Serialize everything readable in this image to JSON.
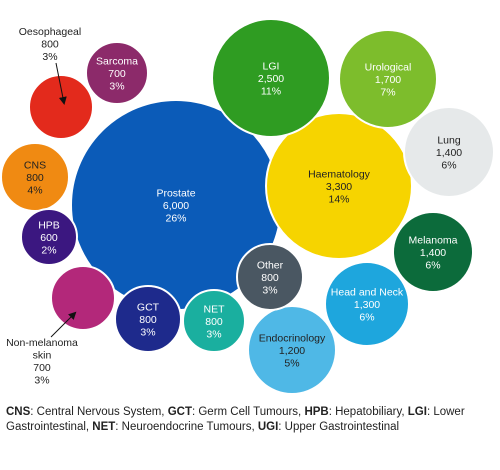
{
  "chart_data": {
    "type": "bubble",
    "bubbles": [
      {
        "label": [
          "Prostate"
        ],
        "value_text": "6,000",
        "pct_text": "26%",
        "value": 6000,
        "pct": 26,
        "color": "#0b5bb8",
        "text_color": "#ffffff"
      },
      {
        "label": [
          "Haematology"
        ],
        "value_text": "3,300",
        "pct_text": "14%",
        "value": 3300,
        "pct": 14,
        "color": "#f6d400",
        "text_color": "#222222"
      },
      {
        "label": [
          "LGI"
        ],
        "value_text": "2,500",
        "pct_text": "11%",
        "value": 2500,
        "pct": 11,
        "color": "#2f9c22",
        "text_color": "#ffffff"
      },
      {
        "label": [
          "Urological"
        ],
        "value_text": "1,700",
        "pct_text": "7%",
        "value": 1700,
        "pct": 7,
        "color": "#7dbd2c",
        "text_color": "#ffffff"
      },
      {
        "label": [
          "Lung"
        ],
        "value_text": "1,400",
        "pct_text": "6%",
        "value": 1400,
        "pct": 6,
        "color": "#e6e9ea",
        "text_color": "#222222"
      },
      {
        "label": [
          "Melanoma"
        ],
        "value_text": "1,400",
        "pct_text": "6%",
        "value": 1400,
        "pct": 6,
        "color": "#0c6b3b",
        "text_color": "#ffffff"
      },
      {
        "label": [
          "Head and Neck"
        ],
        "value_text": "1,300",
        "pct_text": "6%",
        "value": 1300,
        "pct": 6,
        "color": "#1ea6dd",
        "text_color": "#ffffff"
      },
      {
        "label": [
          "Endocrinology"
        ],
        "value_text": "1,200",
        "pct_text": "5%",
        "value": 1200,
        "pct": 5,
        "color": "#4fb8e6",
        "text_color": "#222222"
      },
      {
        "label": [
          "NET"
        ],
        "value_text": "800",
        "pct_text": "3%",
        "value": 800,
        "pct": 3,
        "color": "#1aaf9f",
        "text_color": "#ffffff"
      },
      {
        "label": [
          "Other"
        ],
        "value_text": "800",
        "pct_text": "3%",
        "value": 800,
        "pct": 3,
        "color": "#4a5762",
        "text_color": "#ffffff"
      },
      {
        "label": [
          "GCT"
        ],
        "value_text": "800",
        "pct_text": "3%",
        "value": 800,
        "pct": 3,
        "color": "#1e2a8c",
        "text_color": "#ffffff"
      },
      {
        "label": [
          "CNS"
        ],
        "value_text": "800",
        "pct_text": "4%",
        "value": 800,
        "pct": 4,
        "color": "#f08a12",
        "text_color": "#222222"
      },
      {
        "label": [
          "Sarcoma"
        ],
        "value_text": "700",
        "pct_text": "3%",
        "value": 700,
        "pct": 3,
        "color": "#8c2a6a",
        "text_color": "#ffffff"
      },
      {
        "label": [
          "HPB"
        ],
        "value_text": "600",
        "pct_text": "2%",
        "value": 600,
        "pct": 2,
        "color": "#3b1780",
        "text_color": "#ffffff"
      },
      {
        "label": [
          "Oesophageal"
        ],
        "value_text": "800",
        "pct_text": "3%",
        "value": 800,
        "pct": 3,
        "color": "#e32a1c",
        "text_color": "#222222",
        "external": true
      },
      {
        "label": [
          "Non-melanoma",
          "skin"
        ],
        "value_text": "700",
        "pct_text": "3%",
        "value": 700,
        "pct": 3,
        "color": "#b3287a",
        "text_color": "#222222",
        "external": true
      }
    ]
  },
  "footnote": [
    {
      "abbr": "CNS",
      "text": ": Central Nervous System, "
    },
    {
      "abbr": "GCT",
      "text": ": Germ Cell Tumours,  "
    },
    {
      "abbr": "HPB",
      "text": ": Hepatobiliary, "
    },
    {
      "abbr": "LGI",
      "text": ": Lower Gastrointestinal, "
    },
    {
      "abbr": "NET",
      "text": ": Neuroendocrine Tumours, "
    },
    {
      "abbr": "UGI",
      "text": ": Upper Gastrointestinal"
    }
  ]
}
